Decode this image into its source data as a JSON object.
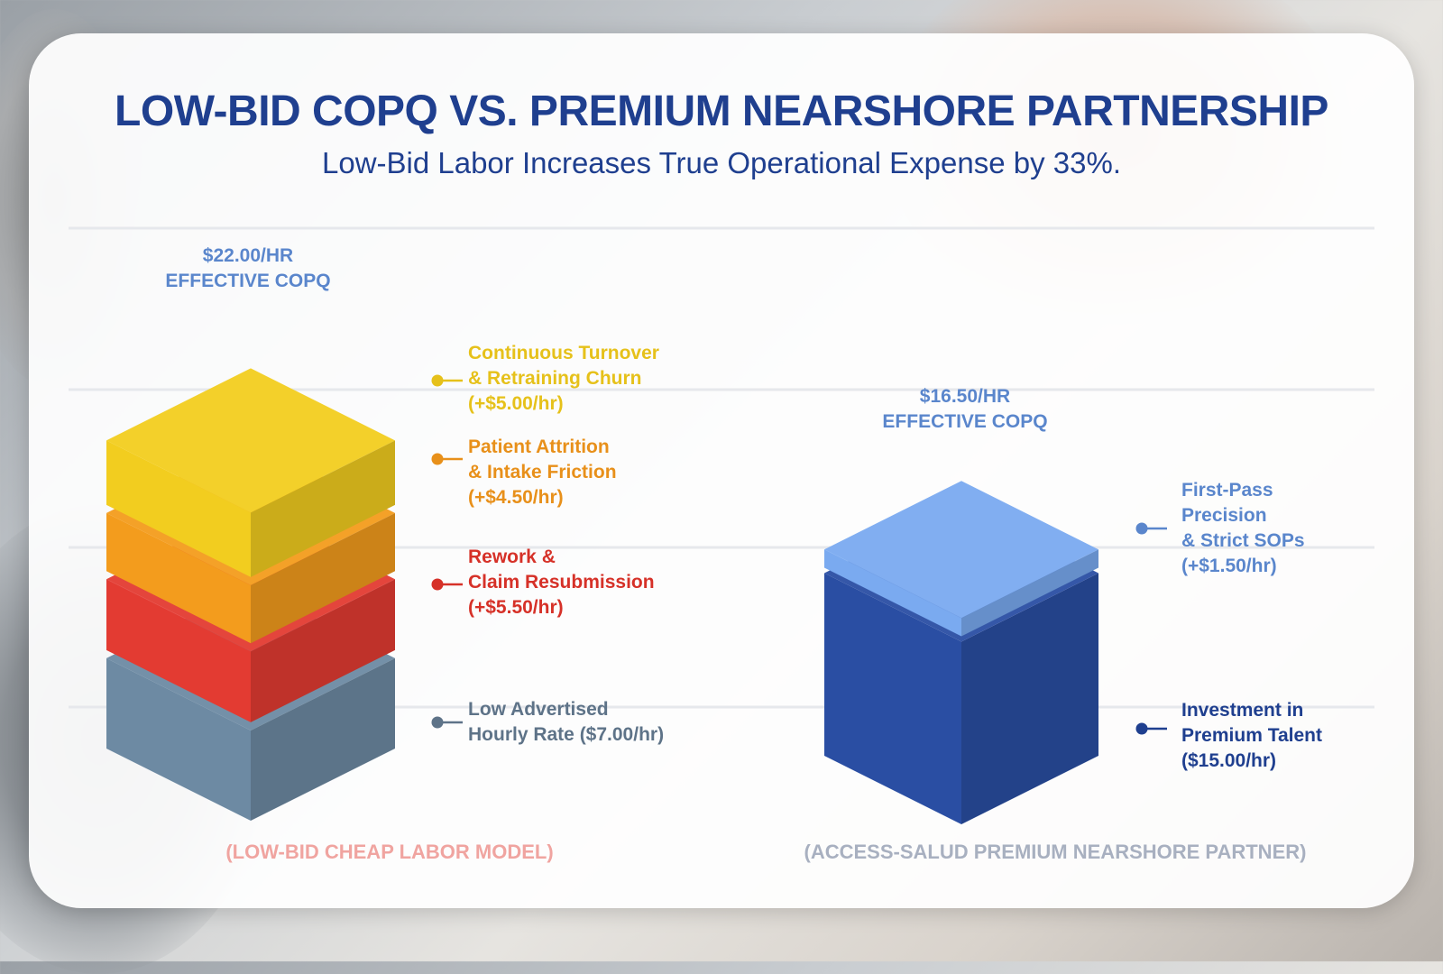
{
  "title": "LOW-BID COPQ VS. PREMIUM NEARSHORE PARTNERSHIP",
  "subtitle": "Low-Bid Labor Increases True Operational Expense by 33%.",
  "colors": {
    "title": "#1f3f8f",
    "turnover": "#f2cd1f",
    "attrition": "#f39c1d",
    "rework": "#e33b32",
    "base_rate": "#6d8aa3",
    "first_pass": "#7aaaf0",
    "premium_talent": "#2a4ea3",
    "low_bid_caption": "#f0a4a0",
    "premium_caption": "#a8b0c0"
  },
  "chart_data": {
    "type": "bar",
    "stacked": true,
    "categories": [
      "(LOW-BID CHEAP LABOR MODEL)",
      "(ACCESS-SALUD PREMIUM NEARSHORE PARTNER)"
    ],
    "totals": [
      {
        "line1": "$22.00/HR",
        "line2": "EFFECTIVE COPQ",
        "value": 22.0
      },
      {
        "line1": "$16.50/HR",
        "line2": "EFFECTIVE COPQ",
        "value": 16.5
      }
    ],
    "series": [
      {
        "stack": 0,
        "segments": [
          {
            "key": "base_rate",
            "value": 7.0,
            "lines": [
              "Low Advertised",
              "Hourly Rate ($7.00/hr)"
            ]
          },
          {
            "key": "rework",
            "value": 5.5,
            "lines": [
              "Rework &",
              "Claim Resubmission",
              "(+$5.50/hr)"
            ]
          },
          {
            "key": "attrition",
            "value": 4.5,
            "lines": [
              "Patient Attrition",
              "& Intake Friction",
              "(+$4.50/hr)"
            ]
          },
          {
            "key": "turnover",
            "value": 5.0,
            "lines": [
              "Continuous Turnover",
              "& Retraining Churn",
              "(+$5.00/hr)"
            ]
          }
        ]
      },
      {
        "stack": 1,
        "segments": [
          {
            "key": "premium_talent",
            "value": 15.0,
            "lines": [
              "Investment in",
              "Premium Talent",
              "($15.00/hr)"
            ]
          },
          {
            "key": "first_pass",
            "value": 1.5,
            "lines": [
              "First-Pass",
              "Precision",
              "& Strict SOPs",
              "(+$1.50/hr)"
            ]
          }
        ]
      }
    ]
  }
}
